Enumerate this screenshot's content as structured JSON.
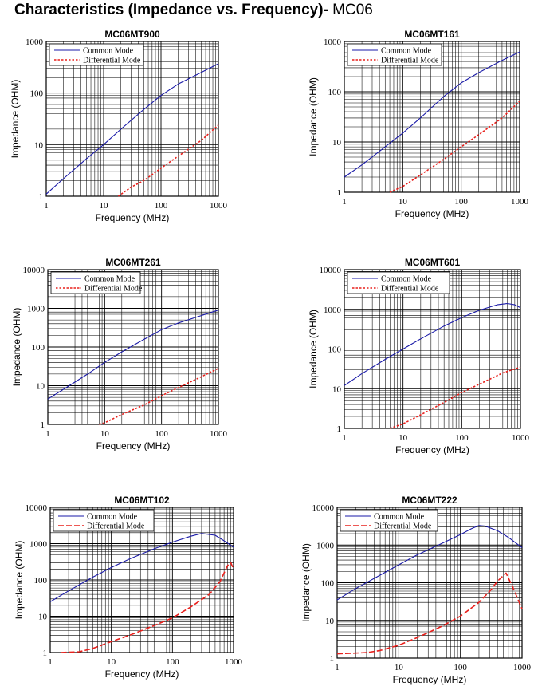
{
  "page": {
    "title_main": "Characteristics (Impedance vs. Frequency)- ",
    "title_model": "MC06"
  },
  "colors": {
    "common": "#1a1aa8",
    "differential": "#e8201c",
    "grid": "#000000"
  },
  "chart_data": [
    {
      "type": "line",
      "title": "MC06MT900",
      "xlabel": "Frequency (MHz)",
      "ylabel": "Impedance (OHM)",
      "xscale": "log",
      "yscale": "log",
      "xlim": [
        1,
        1000
      ],
      "ylim": [
        1,
        1000
      ],
      "grid": true,
      "legend": "top-left",
      "xticks": [
        "1",
        "10",
        "100",
        "1000"
      ],
      "yticks": [
        "1",
        "10",
        "100",
        "1000"
      ],
      "series": [
        {
          "name": "Common Mode",
          "style": "solid",
          "x": [
            1,
            2,
            5,
            10,
            20,
            50,
            100,
            200,
            500,
            1000
          ],
          "y": [
            1.1,
            2.2,
            5.3,
            10,
            20,
            48,
            90,
            150,
            250,
            370
          ]
        },
        {
          "name": "Differential Mode",
          "style": "dotted",
          "x": [
            18,
            30,
            50,
            100,
            200,
            500,
            1000
          ],
          "y": [
            1,
            1.5,
            2,
            3.5,
            6,
            12,
            24
          ]
        }
      ]
    },
    {
      "type": "line",
      "title": "MC06MT161",
      "xlabel": "Frequency (MHz)",
      "ylabel": "Impedance (OHM)",
      "xscale": "log",
      "yscale": "log",
      "xlim": [
        1,
        1000
      ],
      "ylim": [
        1,
        1000
      ],
      "grid": true,
      "legend": "top-left",
      "xticks": [
        "1",
        "10",
        "100",
        "1000"
      ],
      "yticks": [
        "1",
        "10",
        "100",
        "1000"
      ],
      "series": [
        {
          "name": "Common Mode",
          "style": "solid",
          "x": [
            1,
            2,
            5,
            10,
            20,
            50,
            100,
            200,
            500,
            1000
          ],
          "y": [
            2,
            3.5,
            8,
            15,
            30,
            80,
            150,
            240,
            420,
            620
          ]
        },
        {
          "name": "Differential Mode",
          "style": "dotted",
          "x": [
            6,
            10,
            20,
            50,
            100,
            200,
            500,
            1000
          ],
          "y": [
            1,
            1.3,
            2.2,
            4.5,
            8,
            14,
            30,
            65
          ]
        }
      ]
    },
    {
      "type": "line",
      "title": "MC06MT261",
      "xlabel": "Frequency (MHz)",
      "ylabel": "Impedance (OHM)",
      "xscale": "log",
      "yscale": "log",
      "xlim": [
        1,
        1000
      ],
      "ylim": [
        1,
        10000
      ],
      "grid": true,
      "legend": "top-left",
      "xticks": [
        "1",
        "10",
        "100",
        "1000"
      ],
      "yticks": [
        "1",
        "10",
        "100",
        "1000",
        "10000"
      ],
      "series": [
        {
          "name": "Common Mode",
          "style": "solid",
          "x": [
            1,
            2,
            5,
            10,
            20,
            50,
            100,
            200,
            500,
            1000
          ],
          "y": [
            4.5,
            8.5,
            20,
            40,
            75,
            160,
            280,
            420,
            650,
            900
          ]
        },
        {
          "name": "Differential Mode",
          "style": "dotted",
          "x": [
            8,
            10,
            20,
            50,
            100,
            200,
            500,
            1000
          ],
          "y": [
            1,
            1.1,
            1.8,
            3.2,
            5.5,
            9,
            17,
            28
          ]
        }
      ]
    },
    {
      "type": "line",
      "title": "MC06MT601",
      "xlabel": "Frequency (MHz)",
      "ylabel": "Impedance (OHM)",
      "xscale": "log",
      "yscale": "log",
      "xlim": [
        1,
        1000
      ],
      "ylim": [
        1,
        10000
      ],
      "grid": true,
      "legend": "top-left",
      "xticks": [
        "1",
        "10",
        "100",
        "1000"
      ],
      "yticks": [
        "1",
        "10",
        "100",
        "1000",
        "10000"
      ],
      "series": [
        {
          "name": "Common Mode",
          "style": "solid",
          "x": [
            1,
            2,
            5,
            10,
            20,
            50,
            100,
            200,
            400,
            600,
            800,
            1000
          ],
          "y": [
            12,
            24,
            55,
            100,
            180,
            380,
            620,
            950,
            1300,
            1400,
            1300,
            1100
          ]
        },
        {
          "name": "Differential Mode",
          "style": "dotted",
          "x": [
            6,
            10,
            20,
            50,
            100,
            200,
            500,
            1000
          ],
          "y": [
            1,
            1.3,
            2.2,
            4.5,
            8,
            13,
            25,
            35
          ]
        }
      ]
    },
    {
      "type": "line",
      "title": "MC06MT102",
      "xlabel": "Frequency (MHz)",
      "ylabel": "Impedance (OHM)",
      "xscale": "log",
      "yscale": "log",
      "xlim": [
        1,
        1000
      ],
      "ylim": [
        1,
        10000
      ],
      "grid": true,
      "legend": "top-left",
      "xticks": [
        "1",
        "10",
        "100",
        "1000"
      ],
      "yticks": [
        "1",
        "10",
        "100",
        "1000",
        "10000"
      ],
      "series": [
        {
          "name": "Common Mode",
          "style": "solid",
          "x": [
            1,
            2,
            5,
            10,
            20,
            50,
            100,
            200,
            300,
            500,
            700,
            1000
          ],
          "y": [
            25,
            50,
            120,
            220,
            380,
            720,
            1100,
            1600,
            1900,
            1700,
            1200,
            800
          ]
        },
        {
          "name": "Differential Mode",
          "style": "dashed",
          "x": [
            1.5,
            3,
            5,
            10,
            20,
            50,
            100,
            200,
            400,
            600,
            800,
            900,
            1000
          ],
          "y": [
            1,
            1.05,
            1.3,
            2,
            3,
            5.5,
            9,
            18,
            40,
            90,
            250,
            300,
            200
          ]
        }
      ]
    },
    {
      "type": "line",
      "title": "MC06MT222",
      "xlabel": "Frequency (MHz)",
      "ylabel": "Impedance (OHM)",
      "xscale": "log",
      "yscale": "log",
      "xlim": [
        1,
        1000
      ],
      "ylim": [
        1,
        10000
      ],
      "grid": true,
      "legend": "top-left",
      "xticks": [
        "1",
        "10",
        "100",
        "1000"
      ],
      "yticks": [
        "1",
        "10",
        "100",
        "1000",
        "10000"
      ],
      "series": [
        {
          "name": "Common Mode",
          "style": "solid",
          "x": [
            1,
            2,
            5,
            10,
            20,
            50,
            100,
            150,
            200,
            250,
            400,
            600,
            1000
          ],
          "y": [
            35,
            70,
            160,
            300,
            550,
            1100,
            1900,
            2700,
            3300,
            3200,
            2400,
            1600,
            850
          ]
        },
        {
          "name": "Differential Mode",
          "style": "dashed",
          "x": [
            1,
            3,
            5,
            10,
            20,
            50,
            100,
            200,
            300,
            400,
            550,
            700,
            1000
          ],
          "y": [
            1.3,
            1.4,
            1.6,
            2.2,
            3.5,
            7,
            13,
            30,
            60,
            110,
            180,
            80,
            20
          ]
        }
      ]
    }
  ]
}
